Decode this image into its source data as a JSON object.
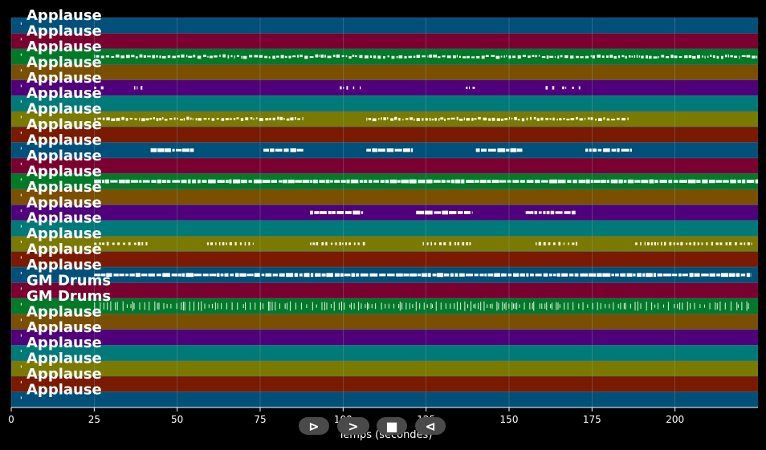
{
  "chart_data": {
    "type": "piano-roll",
    "xlabel": "Temps (secondes)",
    "x_ticks": [
      0,
      25,
      50,
      75,
      100,
      125,
      150,
      175,
      200
    ],
    "xlim": [
      0,
      225
    ],
    "grid": true,
    "tracks": [
      {
        "name": "Applause",
        "color": "#00507a",
        "events": []
      },
      {
        "name": "Applause",
        "color": "#7a0030",
        "events": []
      },
      {
        "name": "Applause",
        "color": "#007a28",
        "events": [
          [
            25,
            225,
            "dense"
          ]
        ]
      },
      {
        "name": "Applause",
        "color": "#7a5000",
        "events": []
      },
      {
        "name": "Applause",
        "color": "#50007a",
        "events": [
          [
            25,
            26,
            "sparse"
          ],
          [
            27,
            28,
            "sparse"
          ],
          [
            37,
            38,
            "sparse"
          ],
          [
            39,
            40,
            "sparse"
          ],
          [
            99,
            100,
            "sparse"
          ],
          [
            101,
            102,
            "sparse"
          ],
          [
            103,
            104,
            "sparse"
          ],
          [
            105,
            106,
            "sparse"
          ],
          [
            137,
            138,
            "sparse"
          ],
          [
            139,
            140,
            "sparse"
          ],
          [
            161,
            162,
            "sparse"
          ],
          [
            163,
            164,
            "sparse"
          ],
          [
            166,
            167,
            "sparse"
          ],
          [
            169,
            170,
            "sparse"
          ],
          [
            171,
            172,
            "sparse"
          ]
        ]
      },
      {
        "name": "Applause",
        "color": "#007a78",
        "events": []
      },
      {
        "name": "Applause",
        "color": "#7a7a00",
        "events": [
          [
            25,
            88,
            "dense"
          ],
          [
            107,
            186,
            "dense"
          ]
        ]
      },
      {
        "name": "Applause",
        "color": "#7a1a00",
        "events": []
      },
      {
        "name": "Applause",
        "color": "#00507a",
        "events": [
          [
            42,
            55,
            "block"
          ],
          [
            76,
            88,
            "block"
          ],
          [
            107,
            121,
            "block"
          ],
          [
            140,
            154,
            "block"
          ],
          [
            173,
            187,
            "block"
          ]
        ]
      },
      {
        "name": "Applause",
        "color": "#7a0030",
        "events": []
      },
      {
        "name": "Applause",
        "color": "#007a28",
        "events": [
          [
            25,
            225,
            "block"
          ]
        ]
      },
      {
        "name": "Applause",
        "color": "#7a5000",
        "events": []
      },
      {
        "name": "Applause",
        "color": "#50007a",
        "events": [
          [
            90,
            106,
            "block"
          ],
          [
            122,
            139,
            "block"
          ],
          [
            155,
            170,
            "block"
          ]
        ]
      },
      {
        "name": "Applause",
        "color": "#007a78",
        "events": []
      },
      {
        "name": "Applause",
        "color": "#7a7a00",
        "events": [
          [
            25,
            41,
            "sparse"
          ],
          [
            59,
            73,
            "sparse"
          ],
          [
            90,
            107,
            "sparse"
          ],
          [
            124,
            139,
            "sparse"
          ],
          [
            158,
            171,
            "sparse"
          ],
          [
            188,
            223,
            "sparse"
          ]
        ]
      },
      {
        "name": "Applause",
        "color": "#7a1a00",
        "events": []
      },
      {
        "name": "Applause",
        "color": "#00507a",
        "events": [
          [
            25,
            223,
            "block"
          ]
        ]
      },
      {
        "name": "GM Drums",
        "color": "#7a0030",
        "events": []
      },
      {
        "name": "GM Drums",
        "color": "#007a28",
        "events": [
          [
            25,
            223,
            "ticks"
          ]
        ]
      },
      {
        "name": "Applause",
        "color": "#7a5000",
        "events": []
      },
      {
        "name": "Applause",
        "color": "#50007a",
        "events": []
      },
      {
        "name": "Applause",
        "color": "#007a78",
        "events": []
      },
      {
        "name": "Applause",
        "color": "#7a7a00",
        "events": []
      },
      {
        "name": "Applause",
        "color": "#7a1a00",
        "events": []
      },
      {
        "name": "Applause",
        "color": "#00507a",
        "events": []
      }
    ]
  },
  "controls": {
    "play_label": "⊳",
    "forward_label": ">",
    "stop_label": "■",
    "back_label": "⊲"
  }
}
